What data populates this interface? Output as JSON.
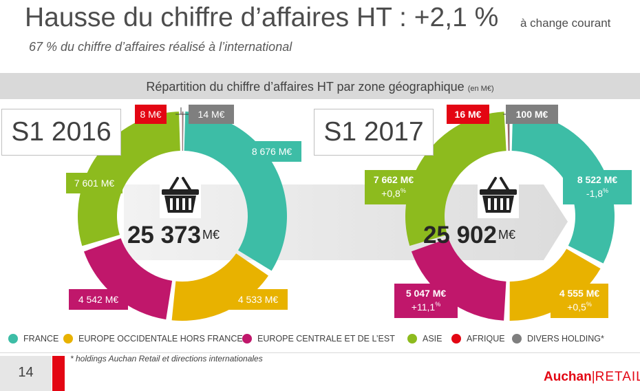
{
  "title": "Hausse du chiffre d’affaires HT : +2,1 %",
  "title_note": "à change courant",
  "subtitle": "67 % du chiffre d’affaires réalisé à l’international",
  "band": {
    "text": "Répartition du chiffre d’affaires HT par zone géographique",
    "unit": "(en M€)"
  },
  "colors": {
    "france": "#3dbda6",
    "europe_occidentale": "#e8b200",
    "europe_centrale": "#c0176b",
    "asie": "#8dbb1e",
    "afrique": "#e30613",
    "divers": "#7f7f7f"
  },
  "chart_data": [
    {
      "type": "pie",
      "title": "S1 2016",
      "total_value": "25 373",
      "total_unit": "M€",
      "icon": "shopping-basket-icon",
      "categories": [
        "FRANCE",
        "EUROPE OCCIDENTALE HORS FRANCE",
        "EUROPE CENTRALE ET DE L’EST",
        "ASIE",
        "AFRIQUE",
        "DIVERS HOLDING*"
      ],
      "values": [
        8676,
        4533,
        4542,
        7601,
        8,
        14
      ],
      "labels": [
        "8 676 M€",
        "4 533 M€",
        "4 542 M€",
        "7 601 M€",
        "8 M€",
        "14 M€"
      ]
    },
    {
      "type": "pie",
      "title": "S1 2017",
      "total_value": "25 902",
      "total_unit": "M€",
      "icon": "shopping-basket-icon",
      "categories": [
        "FRANCE",
        "EUROPE OCCIDENTALE HORS FRANCE",
        "EUROPE CENTRALE ET DE L’EST",
        "ASIE",
        "AFRIQUE",
        "DIVERS HOLDING*"
      ],
      "values": [
        8522,
        4555,
        5047,
        7662,
        16,
        100
      ],
      "labels": [
        "8 522 M€",
        "4 555 M€",
        "5 047 M€",
        "7 662 M€",
        "16 M€",
        "100 M€"
      ],
      "changes": [
        "-1,8%",
        "+0,5%",
        "+11,1%",
        "+0,8%",
        "",
        ""
      ]
    }
  ],
  "legend": [
    {
      "key": "france",
      "label": "FRANCE"
    },
    {
      "key": "europe_occidentale",
      "label": "EUROPE OCCIDENTALE HORS FRANCE"
    },
    {
      "key": "europe_centrale",
      "label": "EUROPE CENTRALE ET DE L’EST"
    },
    {
      "key": "asie",
      "label": "ASIE"
    },
    {
      "key": "afrique",
      "label": "AFRIQUE"
    },
    {
      "key": "divers",
      "label": "DIVERS HOLDING*"
    }
  ],
  "footer": {
    "page_number": "14",
    "footnote": "* holdings Auchan Retail et directions internationales",
    "brand_primary": "Auchan",
    "brand_separator": "|",
    "brand_secondary": "RETAIL"
  }
}
